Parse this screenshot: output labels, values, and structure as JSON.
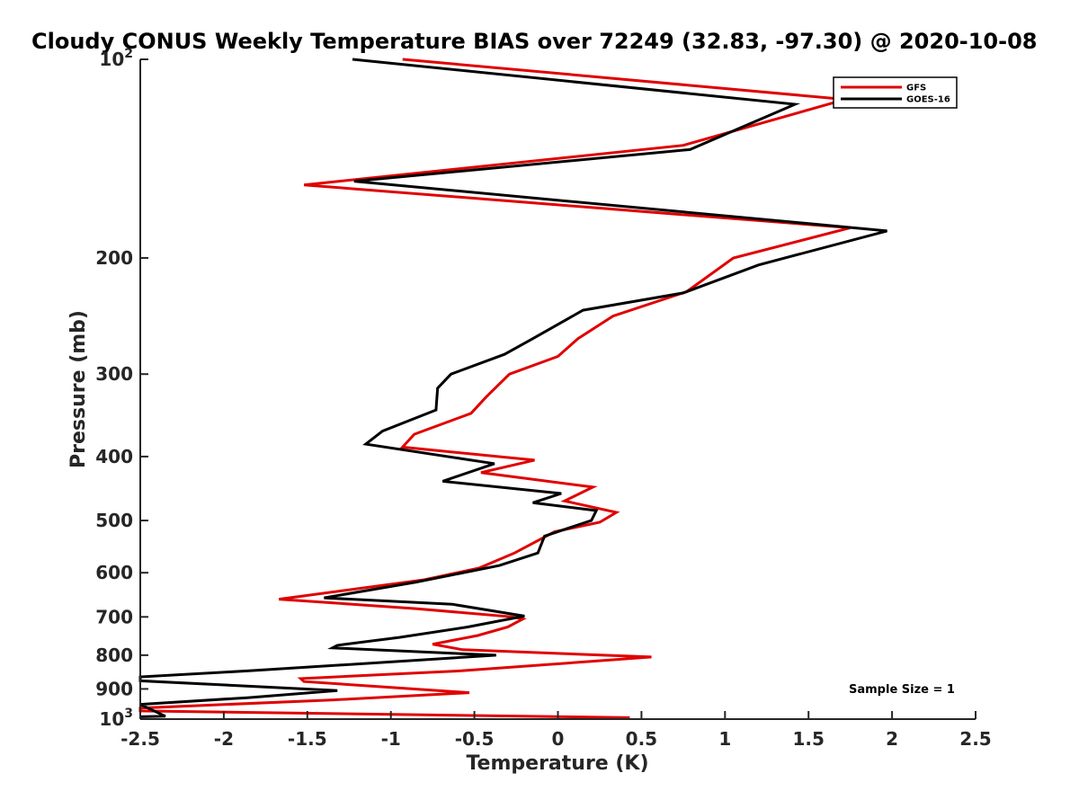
{
  "chart_data": {
    "type": "line",
    "title": "Cloudy CONUS Weekly Temperature BIAS over 72249 (32.83, -97.30) @ 2020-10-08",
    "xlabel": "Temperature (K)",
    "ylabel": "Pressure (mb)",
    "xlim": [
      -2.5,
      2.5
    ],
    "ylim": [
      100,
      1000
    ],
    "y_scale": "log",
    "y_reversed": true,
    "grid": false,
    "legend_position": "top-right",
    "x_ticks": [
      "-2.5",
      "-2",
      "-1.5",
      "-1",
      "-0.5",
      "0",
      "0.5",
      "1",
      "1.5",
      "2",
      "2.5"
    ],
    "x_tick_values": [
      -2.5,
      -2,
      -1.5,
      -1,
      -0.5,
      0,
      0.5,
      1,
      1.5,
      2,
      2.5
    ],
    "y_ticks": [
      {
        "value": 100,
        "base": "10",
        "exp": "2"
      },
      {
        "value": 200,
        "label": "200"
      },
      {
        "value": 300,
        "label": "300"
      },
      {
        "value": 400,
        "label": "400"
      },
      {
        "value": 500,
        "label": "500"
      },
      {
        "value": 600,
        "label": "600"
      },
      {
        "value": 700,
        "label": "700"
      },
      {
        "value": 800,
        "label": "800"
      },
      {
        "value": 900,
        "label": "900"
      },
      {
        "value": 1000,
        "base": "10",
        "exp": "3"
      }
    ],
    "annotation": "Sample Size = 1",
    "series": [
      {
        "name": "GFS",
        "color": "#e00000",
        "points": [
          [
            -0.93,
            100
          ],
          [
            1.72,
            115
          ],
          [
            0.75,
            135
          ],
          [
            -1.52,
            155
          ],
          [
            1.75,
            180
          ],
          [
            1.05,
            200
          ],
          [
            0.77,
            225
          ],
          [
            0.33,
            245
          ],
          [
            0.12,
            265
          ],
          [
            0.0,
            282
          ],
          [
            -0.29,
            300
          ],
          [
            -0.43,
            325
          ],
          [
            -0.52,
            344
          ],
          [
            -0.86,
            370
          ],
          [
            -0.93,
            387
          ],
          [
            -0.14,
            405
          ],
          [
            -0.46,
            423
          ],
          [
            0.21,
            445
          ],
          [
            0.04,
            467
          ],
          [
            0.35,
            486
          ],
          [
            0.25,
            503
          ],
          [
            -0.02,
            520
          ],
          [
            -0.26,
            560
          ],
          [
            -0.47,
            590
          ],
          [
            -0.8,
            615
          ],
          [
            -1.67,
            658
          ],
          [
            -0.85,
            680
          ],
          [
            -0.27,
            700
          ],
          [
            -0.21,
            705
          ],
          [
            -0.3,
            725
          ],
          [
            -0.48,
            747
          ],
          [
            -0.75,
            770
          ],
          [
            -0.57,
            785
          ],
          [
            0.56,
            805
          ],
          [
            -0.58,
            845
          ],
          [
            -1.54,
            868
          ],
          [
            -1.52,
            877
          ],
          [
            -0.53,
            912
          ],
          [
            -1.34,
            935
          ],
          [
            -2.5,
            962
          ],
          [
            -2.5,
            972
          ],
          [
            0.43,
            995
          ]
        ]
      },
      {
        "name": "GOES-16",
        "color": "#000000",
        "points": [
          [
            -1.23,
            100
          ],
          [
            1.42,
            117
          ],
          [
            0.79,
            137
          ],
          [
            -1.22,
            153
          ],
          [
            1.97,
            182
          ],
          [
            1.2,
            205
          ],
          [
            0.75,
            226
          ],
          [
            0.15,
            240
          ],
          [
            -0.15,
            265
          ],
          [
            -0.32,
            280
          ],
          [
            -0.64,
            300
          ],
          [
            -0.72,
            315
          ],
          [
            -0.73,
            340
          ],
          [
            -1.05,
            366
          ],
          [
            -1.15,
            383
          ],
          [
            -0.38,
            410
          ],
          [
            -0.69,
            436
          ],
          [
            0.02,
            455
          ],
          [
            -0.15,
            470
          ],
          [
            0.23,
            483
          ],
          [
            0.2,
            500
          ],
          [
            -0.08,
            528
          ],
          [
            -0.12,
            560
          ],
          [
            -0.35,
            585
          ],
          [
            -0.85,
            620
          ],
          [
            -1.4,
            655
          ],
          [
            -0.63,
            670
          ],
          [
            -0.2,
            698
          ],
          [
            -0.54,
            725
          ],
          [
            -0.95,
            752
          ],
          [
            -1.32,
            773
          ],
          [
            -1.35,
            780
          ],
          [
            -0.37,
            800
          ],
          [
            -1.85,
            845
          ],
          [
            -2.5,
            863
          ],
          [
            -2.5,
            875
          ],
          [
            -1.32,
            905
          ],
          [
            -1.86,
            928
          ],
          [
            -2.5,
            950
          ],
          [
            -2.35,
            990
          ],
          [
            -2.5,
            992
          ]
        ]
      }
    ]
  }
}
